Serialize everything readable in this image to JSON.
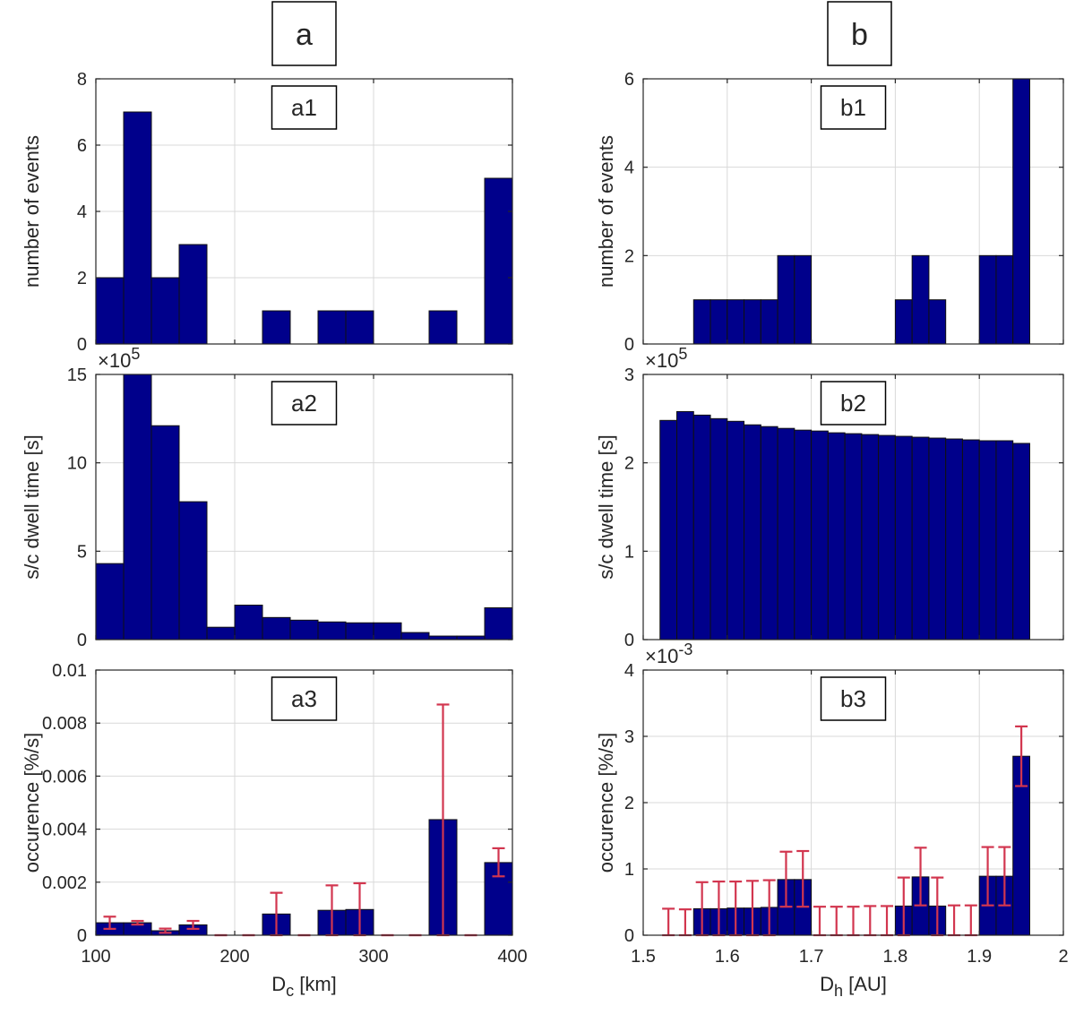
{
  "chart_data": [
    {
      "id": "a1",
      "type": "bar",
      "title": "a1",
      "column": "a",
      "xlabel": "",
      "ylabel": "number of events",
      "xlim": [
        100,
        400
      ],
      "ylim": [
        0,
        8
      ],
      "xticks": [],
      "yticks": [
        "0",
        "2",
        "4",
        "6",
        "8"
      ],
      "ytick_values": [
        0,
        2,
        4,
        6,
        8
      ],
      "exponent_base": "",
      "exponent_power": "",
      "bin_width": 20,
      "bins": [
        100,
        120,
        140,
        160,
        180,
        200,
        220,
        240,
        260,
        280,
        300,
        320,
        340,
        360,
        380
      ],
      "values": [
        2,
        7,
        2,
        3,
        0,
        0,
        1,
        0,
        1,
        1,
        0,
        0,
        1,
        0,
        5
      ]
    },
    {
      "id": "a2",
      "type": "bar",
      "title": "a2",
      "column": "a",
      "xlabel": "",
      "ylabel": "s/c dwell time [s]",
      "xlim": [
        100,
        400
      ],
      "ylim": [
        0,
        15
      ],
      "xticks": [],
      "yticks": [
        "0",
        "5",
        "10",
        "15"
      ],
      "ytick_values": [
        0,
        5,
        10,
        15
      ],
      "exponent_base": "×10",
      "exponent_power": "5",
      "bin_width": 20,
      "bins": [
        100,
        120,
        140,
        160,
        180,
        200,
        220,
        240,
        260,
        280,
        300,
        320,
        340,
        360,
        380
      ],
      "values": [
        4.3,
        15,
        12.1,
        7.8,
        0.7,
        1.95,
        1.25,
        1.1,
        1.0,
        0.95,
        0.95,
        0.4,
        0.2,
        0.2,
        1.8
      ]
    },
    {
      "id": "a3",
      "type": "bar",
      "title": "a3",
      "column": "a",
      "xlabel_main": "D",
      "xlabel_sub": "c",
      "xlabel_unit": " [km]",
      "ylabel": "occurence [%/s]",
      "xlim": [
        100,
        400
      ],
      "ylim": [
        0,
        0.01
      ],
      "xticks": [
        "100",
        "200",
        "300",
        "400"
      ],
      "xtick_values": [
        100,
        200,
        300,
        400
      ],
      "yticks": [
        "0",
        "0.002",
        "0.004",
        "0.006",
        "0.008",
        "0.01"
      ],
      "ytick_values": [
        0,
        0.002,
        0.004,
        0.006,
        0.008,
        0.01
      ],
      "exponent_base": "",
      "exponent_power": "",
      "bin_width": 20,
      "bins": [
        100,
        120,
        140,
        160,
        180,
        200,
        220,
        240,
        260,
        280,
        300,
        320,
        340,
        360,
        380
      ],
      "values": [
        0.00047,
        0.00047,
        0.00017,
        0.00039,
        0,
        0,
        0.0008,
        0,
        0.00094,
        0.00097,
        0,
        0,
        0.00436,
        0,
        0.00274
      ],
      "error_low": [
        0.00024,
        0.0004,
        9e-05,
        0.00024,
        0,
        0,
        0,
        0,
        0,
        0,
        0,
        0,
        0,
        0,
        0.00222
      ],
      "error_high": [
        0.0007,
        0.00054,
        0.00025,
        0.00054,
        0,
        0,
        0.0016,
        0,
        0.00188,
        0.00196,
        0,
        0,
        0.0087,
        0,
        0.00328
      ]
    },
    {
      "id": "b1",
      "type": "bar",
      "title": "b1",
      "column": "b",
      "xlabel": "",
      "ylabel": "number of events",
      "xlim": [
        1.5,
        2.0
      ],
      "ylim": [
        0,
        6
      ],
      "xticks": [],
      "yticks": [
        "0",
        "2",
        "4",
        "6"
      ],
      "ytick_values": [
        0,
        2,
        4,
        6
      ],
      "exponent_base": "",
      "exponent_power": "",
      "bin_width": 0.02,
      "bins": [
        1.52,
        1.54,
        1.56,
        1.58,
        1.6,
        1.62,
        1.64,
        1.66,
        1.68,
        1.7,
        1.72,
        1.74,
        1.76,
        1.78,
        1.8,
        1.82,
        1.84,
        1.86,
        1.88,
        1.9,
        1.92,
        1.94
      ],
      "values": [
        0,
        0,
        1,
        1,
        1,
        1,
        1,
        2,
        2,
        0,
        0,
        0,
        0,
        0,
        1,
        2,
        1,
        0,
        0,
        2,
        2,
        6
      ]
    },
    {
      "id": "b2",
      "type": "bar",
      "title": "b2",
      "column": "b",
      "xlabel": "",
      "ylabel": "s/c dwell time [s]",
      "xlim": [
        1.5,
        2.0
      ],
      "ylim": [
        0,
        3
      ],
      "xticks": [],
      "yticks": [
        "0",
        "1",
        "2",
        "3"
      ],
      "ytick_values": [
        0,
        1,
        2,
        3
      ],
      "exponent_base": "×10",
      "exponent_power": "5",
      "bin_width": 0.02,
      "bins": [
        1.52,
        1.54,
        1.56,
        1.58,
        1.6,
        1.62,
        1.64,
        1.66,
        1.68,
        1.7,
        1.72,
        1.74,
        1.76,
        1.78,
        1.8,
        1.82,
        1.84,
        1.86,
        1.88,
        1.9,
        1.92,
        1.94
      ],
      "values": [
        2.48,
        2.58,
        2.54,
        2.5,
        2.47,
        2.43,
        2.41,
        2.39,
        2.37,
        2.36,
        2.34,
        2.33,
        2.32,
        2.31,
        2.3,
        2.29,
        2.28,
        2.27,
        2.26,
        2.25,
        2.25,
        2.22
      ]
    },
    {
      "id": "b3",
      "type": "bar",
      "title": "b3",
      "column": "b",
      "xlabel_main": "D",
      "xlabel_sub": "h",
      "xlabel_unit": " [AU]",
      "ylabel": "occurence [%/s]",
      "xlim": [
        1.5,
        2.0
      ],
      "ylim": [
        0,
        4
      ],
      "xticks": [
        "1.5",
        "1.6",
        "1.7",
        "1.8",
        "1.9",
        "2"
      ],
      "xtick_values": [
        1.5,
        1.6,
        1.7,
        1.8,
        1.9,
        2.0
      ],
      "yticks": [
        "0",
        "1",
        "2",
        "3",
        "4"
      ],
      "ytick_values": [
        0,
        1,
        2,
        3,
        4
      ],
      "exponent_base": "×10",
      "exponent_power": "-3",
      "bin_width": 0.02,
      "bins": [
        1.52,
        1.54,
        1.56,
        1.58,
        1.6,
        1.62,
        1.64,
        1.66,
        1.68,
        1.7,
        1.72,
        1.74,
        1.76,
        1.78,
        1.8,
        1.82,
        1.84,
        1.86,
        1.88,
        1.9,
        1.92,
        1.94
      ],
      "values": [
        0,
        0,
        0.4,
        0.4,
        0.41,
        0.41,
        0.42,
        0.84,
        0.84,
        0,
        0,
        0,
        0,
        0,
        0.44,
        0.88,
        0.44,
        0,
        0,
        0.89,
        0.89,
        2.7
      ],
      "error_low": [
        0,
        0,
        0,
        0,
        0,
        0,
        0,
        0.43,
        0.43,
        0,
        0,
        0,
        0,
        0,
        0,
        0.45,
        0,
        0,
        0,
        0.45,
        0.45,
        2.25
      ],
      "error_high": [
        0.4,
        0.39,
        0.8,
        0.81,
        0.81,
        0.82,
        0.83,
        1.26,
        1.27,
        0.43,
        0.43,
        0.43,
        0.44,
        0.44,
        0.87,
        1.32,
        0.87,
        0.45,
        0.45,
        1.33,
        1.33,
        3.15
      ]
    }
  ],
  "column_labels": {
    "a": "a",
    "b": "b"
  }
}
